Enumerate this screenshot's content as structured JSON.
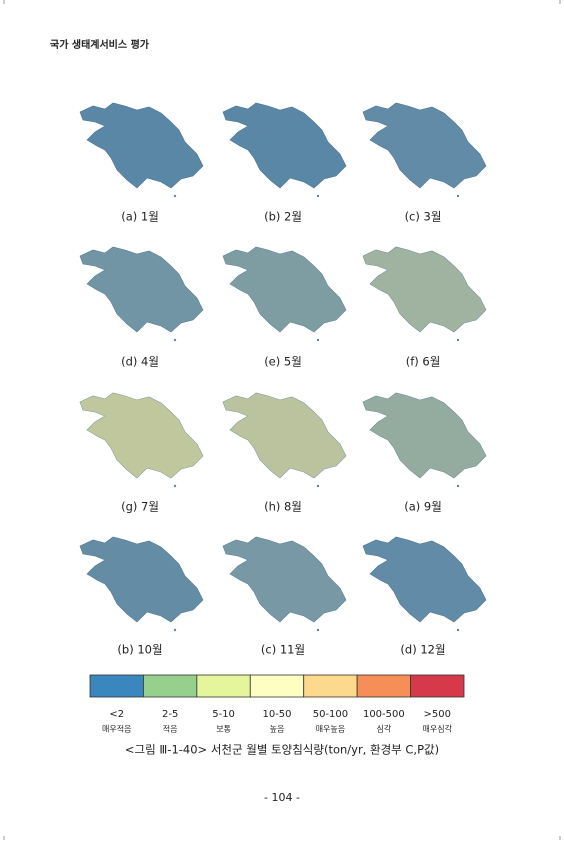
{
  "header": {
    "title": "국가 생태계서비스 평가"
  },
  "maps": [
    {
      "caption": "(a) 1월"
    },
    {
      "caption": "(b) 2월"
    },
    {
      "caption": "(c) 3월"
    },
    {
      "caption": "(d) 4월"
    },
    {
      "caption": "(e) 5월"
    },
    {
      "caption": "(f) 6월"
    },
    {
      "caption": "(g) 7월"
    },
    {
      "caption": "(h) 8월"
    },
    {
      "caption": "(a) 9월"
    },
    {
      "caption": "(b) 10월"
    },
    {
      "caption": "(c) 11월"
    },
    {
      "caption": "(d) 12월"
    }
  ],
  "legend": {
    "items": [
      {
        "label": "<2",
        "sublabel": "매우적음",
        "color": "#3a86be"
      },
      {
        "label": "2-5",
        "sublabel": "적음",
        "color": "#96d08c"
      },
      {
        "label": "5-10",
        "sublabel": "보통",
        "color": "#e4f59c"
      },
      {
        "label": "10-50",
        "sublabel": "높음",
        "color": "#fefec2"
      },
      {
        "label": "50-100",
        "sublabel": "매우높음",
        "color": "#fcd98c"
      },
      {
        "label": "100-500",
        "sublabel": "심각",
        "color": "#f68e58"
      },
      {
        "label": ">500",
        "sublabel": "매우심각",
        "color": "#d63a4a"
      }
    ]
  },
  "figure_caption": "<그림 Ⅲ-1-40> 서천군 월별 토양침식량(ton/yr, 환경부 C,P값)",
  "page_number": "- 104 -"
}
